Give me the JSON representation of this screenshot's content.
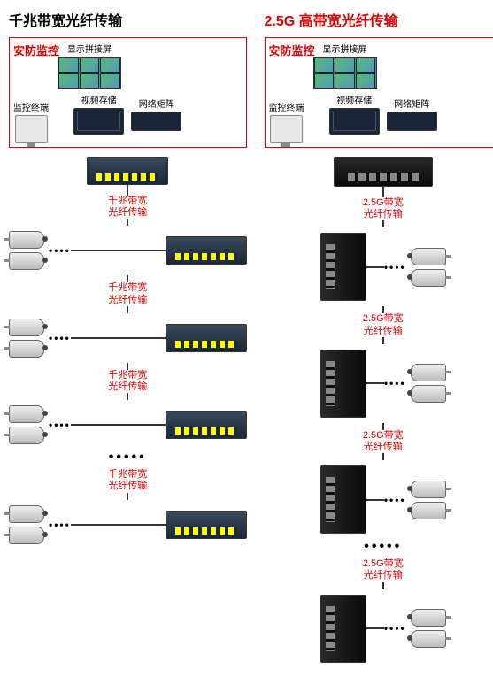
{
  "left": {
    "title": "千兆带宽光纤传输",
    "title_color": "#111111",
    "box_label": "安防监控",
    "devices": {
      "video_wall": "显示拼接屏",
      "storage": "视频存储",
      "matrix": "网络矩阵",
      "monitor": "监控终端"
    },
    "link_label_line1": "千兆带宽",
    "link_label_line2": "光纤传输",
    "tier_count": 4,
    "dots": "•••••",
    "cam_dots": "••••"
  },
  "right": {
    "title": "2.5G 高带宽光纤传输",
    "title_color": "#cc0000",
    "box_label": "安防监控",
    "devices": {
      "video_wall": "显示拼接屏",
      "storage": "视频存储",
      "matrix": "网络矩阵",
      "monitor": "监控终端"
    },
    "link_label_line1": "2.5G带宽",
    "link_label_line2": "光纤传输",
    "tier_count": 4,
    "dots": "•••••",
    "cam_dots": "••••"
  },
  "styling": {
    "red": "#cc0000",
    "camera_color": "#cccccc",
    "switch_dark": "#1a2838",
    "switch_black": "#0a0a0a",
    "background": "#ffffff",
    "font_family": "Microsoft YaHei"
  }
}
